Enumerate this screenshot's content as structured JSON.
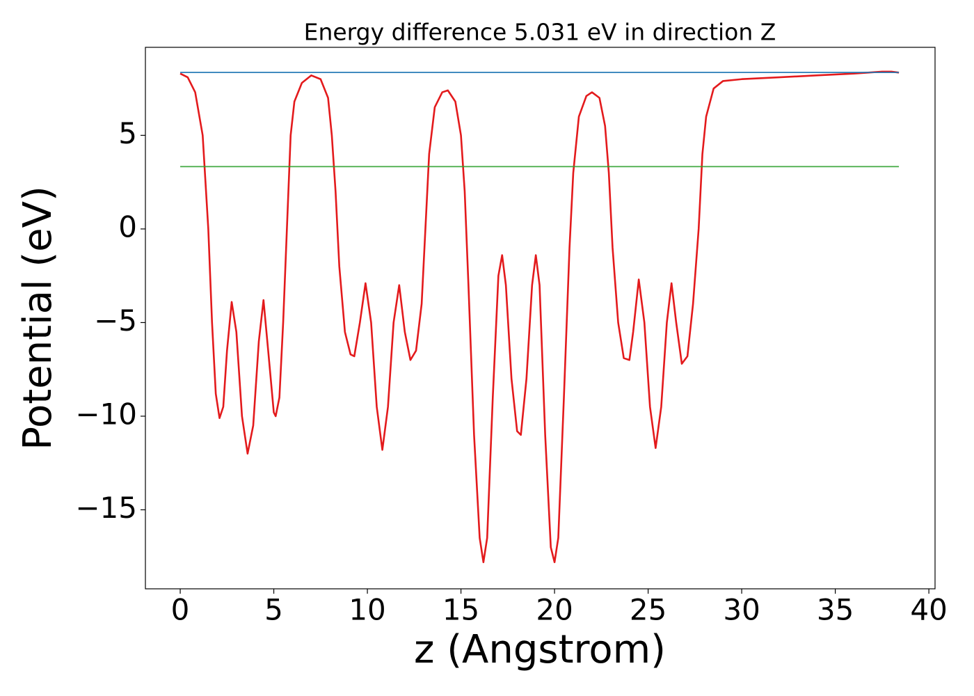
{
  "chart_data": {
    "type": "line",
    "title": "Energy difference 5.031 eV in direction Z",
    "xlabel": "z (Angstrom)",
    "ylabel": "Potential (eV)",
    "xlim": [
      -1.86,
      40.33
    ],
    "ylim": [
      -19.22,
      9.7
    ],
    "xticks": [
      0,
      5,
      10,
      15,
      20,
      25,
      30,
      35,
      40
    ],
    "yticks": [
      {
        "value": -15,
        "label": "−15"
      },
      {
        "value": -10,
        "label": "−10"
      },
      {
        "value": -5,
        "label": "−5"
      },
      0,
      5
    ],
    "series": [
      {
        "color": "#e31a1c",
        "x": [
          0,
          0.4,
          0.8,
          1.2,
          1.5,
          1.7,
          1.9,
          2.1,
          2.3,
          2.5,
          2.75,
          3.0,
          3.3,
          3.6,
          3.9,
          4.2,
          4.45,
          4.7,
          5.0,
          5.1,
          5.3,
          5.5,
          5.7,
          5.9,
          6.1,
          6.5,
          7.0,
          7.5,
          7.9,
          8.1,
          8.3,
          8.5,
          8.8,
          9.1,
          9.3,
          9.6,
          9.9,
          10.2,
          10.5,
          10.8,
          11.1,
          11.4,
          11.7,
          12.0,
          12.3,
          12.6,
          12.9,
          13.1,
          13.3,
          13.6,
          14.0,
          14.3,
          14.7,
          15.0,
          15.2,
          15.4,
          15.7,
          16.0,
          16.2,
          16.4,
          16.7,
          17.0,
          17.2,
          17.4,
          17.7,
          18.0,
          18.2,
          18.5,
          18.8,
          19.0,
          19.2,
          19.5,
          19.8,
          20.0,
          20.2,
          20.5,
          20.8,
          21.0,
          21.3,
          21.7,
          22.0,
          22.4,
          22.7,
          22.9,
          23.1,
          23.4,
          23.7,
          24.0,
          24.2,
          24.5,
          24.8,
          25.1,
          25.4,
          25.7,
          26.0,
          26.25,
          26.5,
          26.8,
          27.1,
          27.4,
          27.7,
          27.9,
          28.1,
          28.5,
          29.0,
          30.0,
          32.0,
          34.0,
          36.0,
          37.5,
          38.0,
          38.4
        ],
        "values": [
          8.3,
          8.1,
          7.3,
          5.0,
          0,
          -5,
          -8.8,
          -10.1,
          -9.5,
          -6.5,
          -3.9,
          -5.5,
          -10,
          -12.0,
          -10.5,
          -6,
          -3.8,
          -6.5,
          -9.8,
          -10.0,
          -9,
          -5,
          0,
          5,
          6.8,
          7.8,
          8.2,
          8.0,
          7.0,
          5.0,
          2,
          -2,
          -5.5,
          -6.7,
          -6.8,
          -5,
          -2.9,
          -5,
          -9.5,
          -11.8,
          -9.5,
          -5,
          -3.0,
          -5.5,
          -7.0,
          -6.5,
          -4,
          0,
          4,
          6.5,
          7.3,
          7.4,
          6.8,
          5,
          2,
          -3,
          -11,
          -16.5,
          -17.8,
          -16.5,
          -9,
          -2.5,
          -1.4,
          -3,
          -8,
          -10.8,
          -11,
          -8,
          -3,
          -1.4,
          -3,
          -11,
          -17,
          -17.8,
          -16.5,
          -9,
          -1,
          3,
          6,
          7.1,
          7.3,
          7.0,
          5.5,
          3,
          -1,
          -5,
          -6.9,
          -7.0,
          -5.5,
          -2.7,
          -5,
          -9.5,
          -11.7,
          -9.5,
          -5,
          -2.9,
          -5,
          -7.2,
          -6.8,
          -4,
          0,
          4,
          6,
          7.5,
          7.9,
          8.0,
          8.1,
          8.2,
          8.3,
          8.4,
          8.4,
          8.35
        ]
      },
      {
        "color": "#1f77b4",
        "x": [
          0,
          38.4
        ],
        "values": [
          8.36,
          8.36
        ]
      },
      {
        "color": "#2ca02c",
        "x": [
          0,
          38.4
        ],
        "values": [
          3.33,
          3.33
        ]
      }
    ]
  }
}
